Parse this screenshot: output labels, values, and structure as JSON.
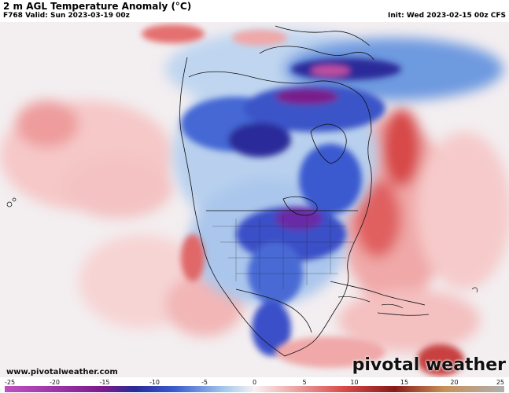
{
  "header": {
    "title": "2 m AGL Temperature Anomaly (°C)",
    "valid": "F768 Valid: Sun 2023-03-19 00z",
    "init": "Init: Wed 2023-02-15 00z CFS"
  },
  "footer": {
    "credit": "www.pivotalweather.com",
    "brand": "pivotal weather"
  },
  "colorbar": {
    "min": -25,
    "max": 25,
    "tick_labels": [
      "-25",
      "-20",
      "-15",
      "-10",
      "-5",
      "0",
      "5",
      "10",
      "15",
      "20",
      "25"
    ],
    "colors": {
      "deep_purple": "#c050c0",
      "purple": "#7a1a8a",
      "dark_blue": "#2a2a9a",
      "blue": "#3a5ad0",
      "light_blue": "#a8c8ec",
      "neutral": "#f6f2f2",
      "light_red": "#f2b8b8",
      "red": "#d84848",
      "dark_red": "#8a1a1a",
      "brown": "#c89058",
      "gray": "#b0b0b0"
    }
  }
}
